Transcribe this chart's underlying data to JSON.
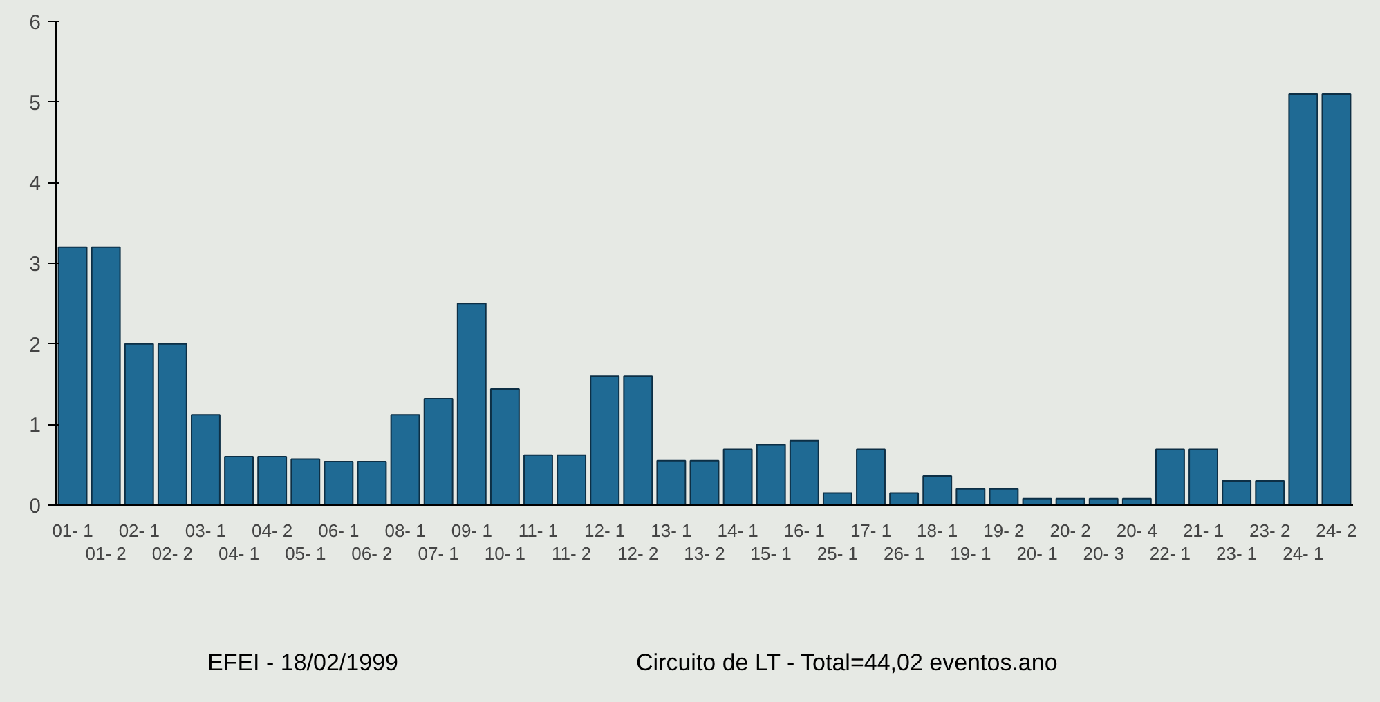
{
  "chart_data": {
    "type": "bar",
    "categories": [
      "01- 1",
      "01- 2",
      "02- 1",
      "02- 2",
      "03- 1",
      "04- 1",
      "04- 2",
      "05- 1",
      "06- 1",
      "06- 2",
      "08- 1",
      "07- 1",
      "09- 1",
      "10- 1",
      "11- 1",
      "11- 2",
      "12- 1",
      "12- 2",
      "13- 1",
      "13- 2",
      "14- 1",
      "15- 1",
      "16- 1",
      "25- 1",
      "17- 1",
      "26- 1",
      "18- 1",
      "19- 1",
      "19- 2",
      "20- 1",
      "20- 2",
      "20- 3",
      "20- 4",
      "22- 1",
      "21- 1",
      "23- 1",
      "23- 2",
      "24- 1",
      "24- 2"
    ],
    "values": [
      3.2,
      3.2,
      2.0,
      2.0,
      1.12,
      0.6,
      0.6,
      0.57,
      0.54,
      0.54,
      1.12,
      1.32,
      2.5,
      1.44,
      0.62,
      0.62,
      1.6,
      1.6,
      0.55,
      0.55,
      0.69,
      0.75,
      0.8,
      0.15,
      0.69,
      0.15,
      0.36,
      0.2,
      0.2,
      0.08,
      0.08,
      0.08,
      0.08,
      0.69,
      0.69,
      0.3,
      0.3,
      5.1,
      5.1
    ],
    "color": "#1f6a94",
    "ylim": [
      0,
      6
    ],
    "yticks": [
      0,
      1,
      2,
      3,
      4,
      5,
      6
    ],
    "annotations": [
      "EFEI - 18/02/1999",
      "Circuito de LT - Total=44,02 eventos.ano"
    ]
  }
}
